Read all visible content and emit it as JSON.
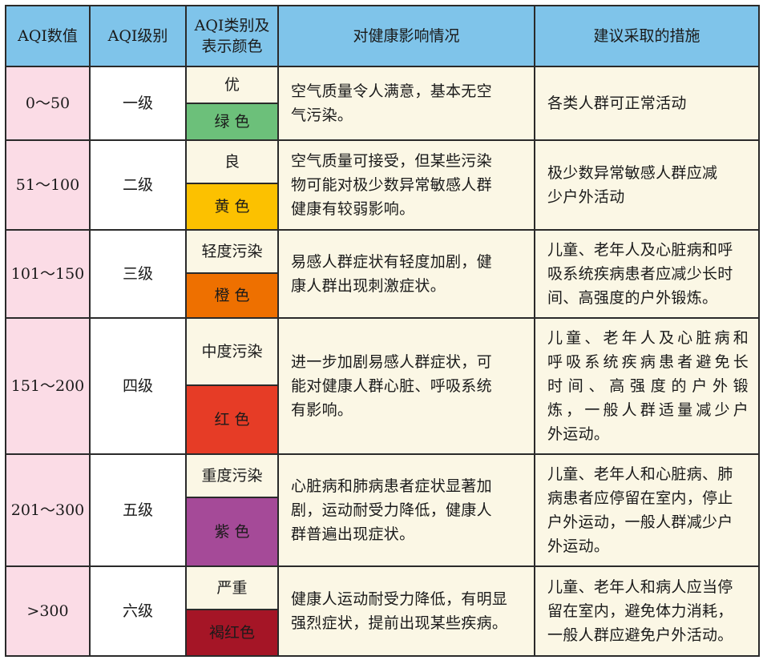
{
  "headers": {
    "aqi_value": "AQI数值",
    "aqi_level": "AQI级别",
    "aqi_category_line1": "AQI类别及",
    "aqi_category_line2": "表示颜色",
    "health_impact": "对健康影响情况",
    "measures": "建议采取的措施"
  },
  "rows": [
    {
      "value": "0～50",
      "level": "一级",
      "category": "优",
      "color_name": "绿 色",
      "color_hex": "#6cc07a",
      "impact": [
        "空气质量令人满意，基本无空",
        "气污染。"
      ],
      "measures": [
        "各类人群可正常活动"
      ]
    },
    {
      "value": "51～100",
      "level": "二级",
      "category": "良",
      "color_name": "黄 色",
      "color_hex": "#fcc100",
      "impact": [
        "空气质量可接受，但某些污染",
        "物可能对极少数异常敏感人群",
        "健康有较弱影响。"
      ],
      "measures": [
        "极少数异常敏感人群应减",
        "少户外活动"
      ]
    },
    {
      "value": "101～150",
      "level": "三级",
      "category": "轻度污染",
      "color_name": "橙 色",
      "color_hex": "#ee7000",
      "impact": [
        "易感人群症状有轻度加剧，健",
        "康人群出现刺激症状。"
      ],
      "measures": [
        "儿童、老年人及心脏病和呼",
        "吸系统疾病患者应减少长时",
        "间、高强度的户外锻炼。"
      ]
    },
    {
      "value": "151～200",
      "level": "四级",
      "category": "中度污染",
      "color_name": "红 色",
      "color_hex": "#e63c26",
      "impact": [
        "进一步加剧易感人群症状，可",
        "能对健康人群心脏、呼吸系统",
        "有影响。"
      ],
      "measures": [
        "儿童、老年人及心脏病和",
        "呼吸系统疾病患者避免长",
        "时间、高强度的户外锻",
        "炼，一般人群适量减少户",
        "外运动。"
      ]
    },
    {
      "value": "201～300",
      "level": "五级",
      "category": "重度污染",
      "color_name": "紫 色",
      "color_hex": "#a54a98",
      "impact": [
        "心脏病和肺病患者症状显著加",
        "剧，运动耐受力降低，健康人",
        "群普遍出现症状。"
      ],
      "measures": [
        "儿童、老年人和心脏病、肺",
        "病患者应停留在室内，停止",
        "户外运动，一般人群减少户",
        "外运动。"
      ]
    },
    {
      "value": ">300",
      "level": "六级",
      "category": "严重",
      "color_name": "褐红色",
      "color_hex": "#a51526",
      "impact": [
        "健康人运动耐受力降低，有明显",
        "强烈症状，提前出现某些疾病。"
      ],
      "measures": [
        "儿童、老年人和病人应当停",
        "留在室内，避免体力消耗，",
        "一般人群应避免户外活动。"
      ]
    }
  ]
}
